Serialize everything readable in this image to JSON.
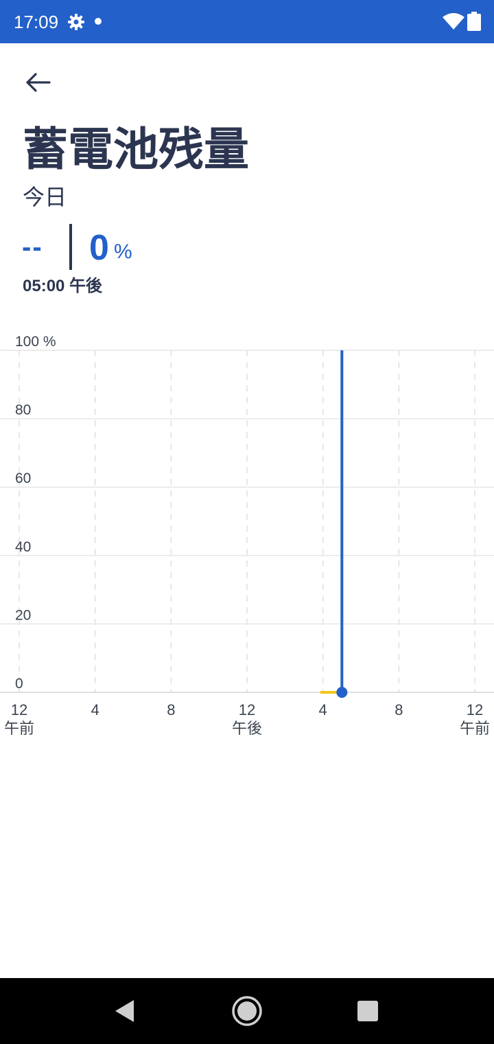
{
  "status_bar": {
    "time": "17:09",
    "icons": [
      "gear-icon",
      "notification-dot-icon",
      "wifi-icon",
      "battery-icon"
    ],
    "background_color": "#2360c9"
  },
  "header": {
    "back_icon": "arrow-left-icon",
    "title": "蓄電池残量",
    "subtitle": "今日"
  },
  "readout": {
    "previous_value": "--",
    "value": "0",
    "unit": "%",
    "time": "05:00 午後"
  },
  "colors": {
    "accent": "#2360c9",
    "text": "#2c3550",
    "highlight": "#f5c518"
  },
  "chart_data": {
    "type": "line",
    "x_ticks": [
      {
        "line1": "12",
        "line2": "午前"
      },
      {
        "line1": "4",
        "line2": ""
      },
      {
        "line1": "8",
        "line2": ""
      },
      {
        "line1": "12",
        "line2": "午後"
      },
      {
        "line1": "4",
        "line2": ""
      },
      {
        "line1": "8",
        "line2": ""
      },
      {
        "line1": "12",
        "line2": "午前"
      }
    ],
    "x_range_hours": [
      0,
      24
    ],
    "y_ticks": [
      "100 %",
      "80",
      "60",
      "40",
      "20",
      "0"
    ],
    "y_range": [
      0,
      100
    ],
    "cursor_hour": 17,
    "highlight_segment_hours": [
      16,
      16.75
    ],
    "highlight_value": 0,
    "points": [
      {
        "hour": 17,
        "value": 0
      }
    ],
    "grid": true
  },
  "nav_bar": {
    "icons": [
      "back-triangle-icon",
      "home-circle-icon",
      "recents-square-icon"
    ]
  }
}
